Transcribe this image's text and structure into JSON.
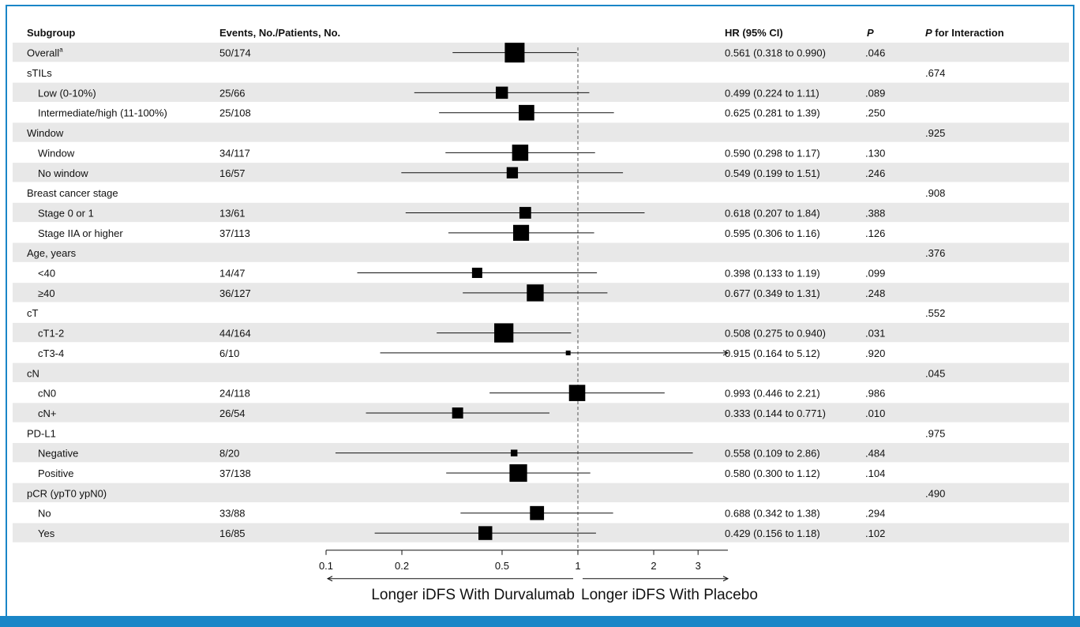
{
  "chart_data": {
    "type": "forest",
    "headers": {
      "subgroup": "Subgroup",
      "events": "Events, No./Patients, No.",
      "hr": "HR (95% CI)",
      "p": "P",
      "p_interaction": "P for Interaction"
    },
    "x_axis": {
      "scale": "log",
      "range": [
        0.1,
        3.3
      ],
      "ticks": [
        0.1,
        0.2,
        0.5,
        1,
        2,
        3
      ],
      "tick_labels": [
        "0.1",
        "0.2",
        "0.5",
        "1",
        "2",
        "3"
      ],
      "reference_line": 1,
      "reference_line_style": "dashed"
    },
    "direction_labels": {
      "left": "Longer iDFS With Durvalumab",
      "right": "Longer iDFS With Placebo"
    },
    "rows": [
      {
        "label": "Overall",
        "sup": "a",
        "indent": false,
        "events": "50/174",
        "hr": 0.561,
        "lo": 0.318,
        "hi": 0.99,
        "hr_text": "0.561 (0.318 to 0.990)",
        "p": ".046",
        "p_int": "",
        "weight": 174,
        "shaded": true
      },
      {
        "label": "sTILs",
        "indent": false,
        "events": "",
        "hr_text": "",
        "p": "",
        "p_int": ".674",
        "shaded": false
      },
      {
        "label": "Low (0-10%)",
        "indent": true,
        "events": "25/66",
        "hr": 0.499,
        "lo": 0.224,
        "hi": 1.11,
        "hr_text": "0.499 (0.224 to 1.11)",
        "p": ".089",
        "p_int": "",
        "weight": 66,
        "shaded": true
      },
      {
        "label": "Intermediate/high (11-100%)",
        "indent": true,
        "events": "25/108",
        "hr": 0.625,
        "lo": 0.281,
        "hi": 1.39,
        "hr_text": "0.625 (0.281 to 1.39)",
        "p": ".250",
        "p_int": "",
        "weight": 108,
        "shaded": false
      },
      {
        "label": "Window",
        "indent": false,
        "events": "",
        "hr_text": "",
        "p": "",
        "p_int": ".925",
        "shaded": true
      },
      {
        "label": "Window",
        "indent": true,
        "events": "34/117",
        "hr": 0.59,
        "lo": 0.298,
        "hi": 1.17,
        "hr_text": "0.590 (0.298 to 1.17)",
        "p": ".130",
        "p_int": "",
        "weight": 117,
        "shaded": false
      },
      {
        "label": "No window",
        "indent": true,
        "events": "16/57",
        "hr": 0.549,
        "lo": 0.199,
        "hi": 1.51,
        "hr_text": "0.549 (0.199 to 1.51)",
        "p": ".246",
        "p_int": "",
        "weight": 57,
        "shaded": true
      },
      {
        "label": "Breast cancer stage",
        "indent": false,
        "events": "",
        "hr_text": "",
        "p": "",
        "p_int": ".908",
        "shaded": false
      },
      {
        "label": "Stage 0 or 1",
        "indent": true,
        "events": "13/61",
        "hr": 0.618,
        "lo": 0.207,
        "hi": 1.84,
        "hr_text": "0.618 (0.207 to 1.84)",
        "p": ".388",
        "p_int": "",
        "weight": 61,
        "shaded": true
      },
      {
        "label": "Stage IIA or higher",
        "indent": true,
        "events": "37/113",
        "hr": 0.595,
        "lo": 0.306,
        "hi": 1.16,
        "hr_text": "0.595 (0.306 to 1.16)",
        "p": ".126",
        "p_int": "",
        "weight": 113,
        "shaded": false
      },
      {
        "label": "Age, years",
        "indent": false,
        "events": "",
        "hr_text": "",
        "p": "",
        "p_int": ".376",
        "shaded": true
      },
      {
        "label": "<40",
        "indent": true,
        "events": "14/47",
        "hr": 0.398,
        "lo": 0.133,
        "hi": 1.19,
        "hr_text": "0.398 (0.133 to 1.19)",
        "p": ".099",
        "p_int": "",
        "weight": 47,
        "shaded": false
      },
      {
        "label": "≥40",
        "indent": true,
        "events": "36/127",
        "hr": 0.677,
        "lo": 0.349,
        "hi": 1.31,
        "hr_text": "0.677 (0.349 to 1.31)",
        "p": ".248",
        "p_int": "",
        "weight": 127,
        "shaded": true
      },
      {
        "label": "cT",
        "indent": false,
        "events": "",
        "hr_text": "",
        "p": "",
        "p_int": ".552",
        "shaded": false
      },
      {
        "label": "cT1-2",
        "indent": true,
        "events": "44/164",
        "hr": 0.508,
        "lo": 0.275,
        "hi": 0.94,
        "hr_text": "0.508 (0.275 to 0.940)",
        "p": ".031",
        "p_int": "",
        "weight": 164,
        "shaded": true
      },
      {
        "label": "cT3-4",
        "indent": true,
        "events": "6/10",
        "hr": 0.915,
        "lo": 0.164,
        "hi": 5.12,
        "hr_text": "0.915 (0.164 to 5.12)",
        "p": ".920",
        "p_int": "",
        "weight": 10,
        "shaded": false
      },
      {
        "label": "cN",
        "indent": false,
        "events": "",
        "hr_text": "",
        "p": "",
        "p_int": ".045",
        "shaded": true
      },
      {
        "label": "cN0",
        "indent": true,
        "events": "24/118",
        "hr": 0.993,
        "lo": 0.446,
        "hi": 2.21,
        "hr_text": "0.993 (0.446 to 2.21)",
        "p": ".986",
        "p_int": "",
        "weight": 118,
        "shaded": false
      },
      {
        "label": "cN+",
        "indent": true,
        "events": "26/54",
        "hr": 0.333,
        "lo": 0.144,
        "hi": 0.771,
        "hr_text": "0.333 (0.144 to 0.771)",
        "p": ".010",
        "p_int": "",
        "weight": 54,
        "shaded": true
      },
      {
        "label": "PD-L1",
        "indent": false,
        "events": "",
        "hr_text": "",
        "p": "",
        "p_int": ".975",
        "shaded": false
      },
      {
        "label": "Negative",
        "indent": true,
        "events": "8/20",
        "hr": 0.558,
        "lo": 0.109,
        "hi": 2.86,
        "hr_text": "0.558 (0.109 to 2.86)",
        "p": ".484",
        "p_int": "",
        "weight": 20,
        "shaded": true
      },
      {
        "label": "Positive",
        "indent": true,
        "events": "37/138",
        "hr": 0.58,
        "lo": 0.3,
        "hi": 1.12,
        "hr_text": "0.580 (0.300 to 1.12)",
        "p": ".104",
        "p_int": "",
        "weight": 138,
        "shaded": false
      },
      {
        "label": "pCR (ypT0 ypN0)",
        "indent": false,
        "events": "",
        "hr_text": "",
        "p": "",
        "p_int": ".490",
        "shaded": true
      },
      {
        "label": "No",
        "indent": true,
        "events": "33/88",
        "hr": 0.688,
        "lo": 0.342,
        "hi": 1.38,
        "hr_text": "0.688 (0.342 to 1.38)",
        "p": ".294",
        "p_int": "",
        "weight": 88,
        "shaded": false
      },
      {
        "label": "Yes",
        "indent": true,
        "events": "16/85",
        "hr": 0.429,
        "lo": 0.156,
        "hi": 1.18,
        "hr_text": "0.429 (0.156 to 1.18)",
        "p": ".102",
        "p_int": "",
        "weight": 85,
        "shaded": true
      }
    ],
    "colors": {
      "frame": "#1a86c7",
      "row_shade": "#e8e8e8",
      "marker": "#000000"
    }
  }
}
